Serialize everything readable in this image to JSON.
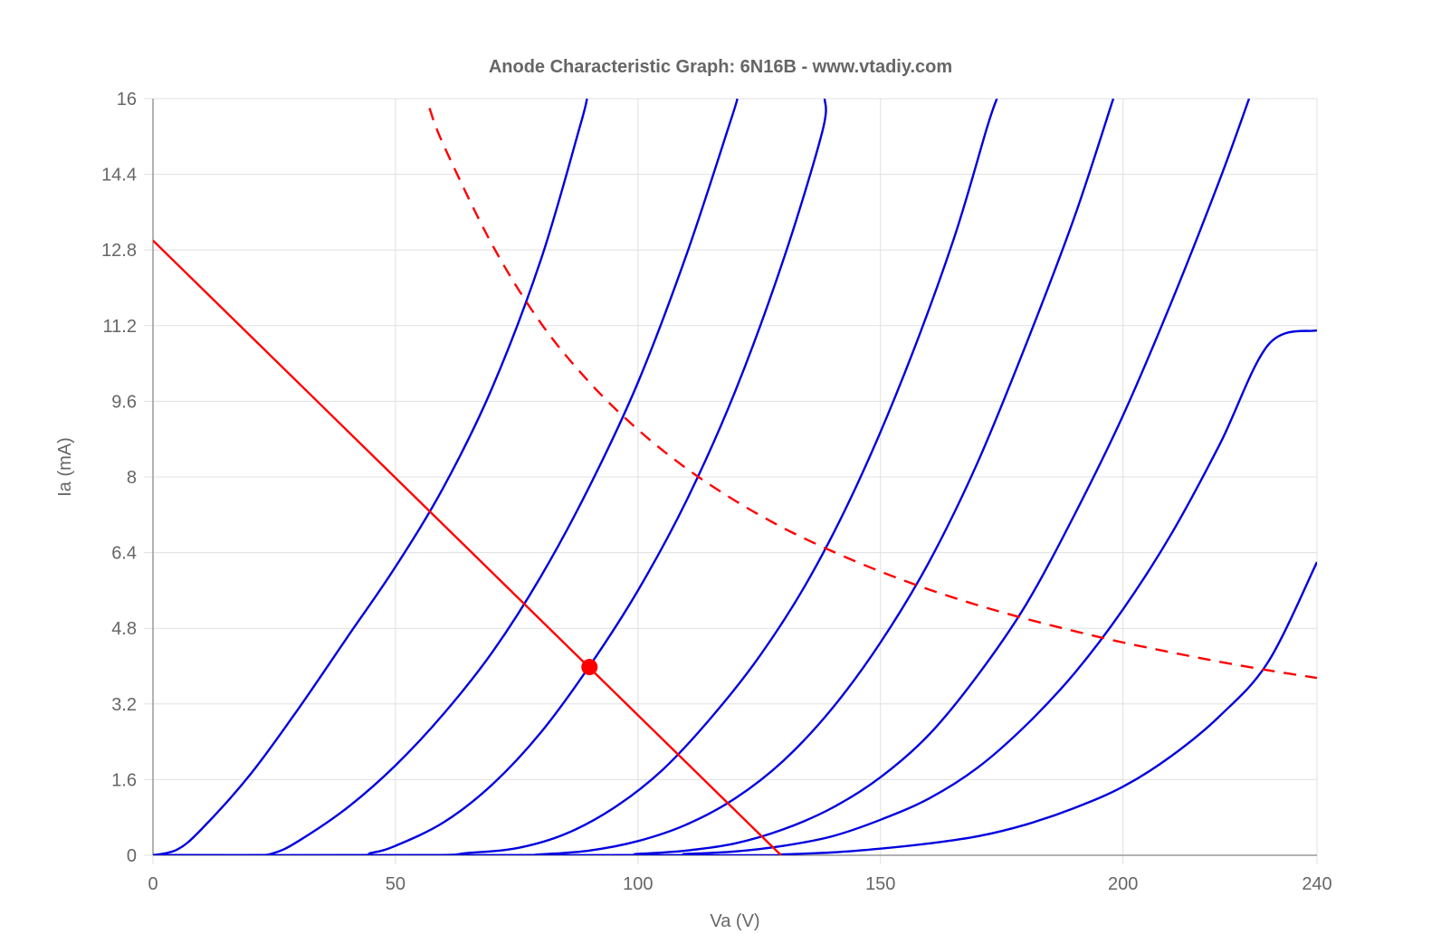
{
  "chart_data": {
    "type": "line",
    "title": "Anode Characteristic Graph: 6N16B - www.vtadiy.com",
    "xlabel": "Va (V)",
    "ylabel": "Ia (mA)",
    "xlim": [
      0,
      240
    ],
    "ylim": [
      0,
      16
    ],
    "x_ticks": [
      "0",
      "50",
      "100",
      "150",
      "200",
      "240"
    ],
    "y_ticks": [
      "0",
      "1.6",
      "3.2",
      "4.8",
      "6.4",
      "8",
      "9.6",
      "11.2",
      "12.8",
      "14.4",
      "16"
    ],
    "grid": true,
    "legend": "none",
    "colors": {
      "curves": "#0000e0",
      "load_line": "#ff0000",
      "max_dissipation": "#ff0000",
      "operating_point": "#ff0000",
      "grid": "#e0e0e0",
      "axis": "#999999",
      "text": "#666666"
    },
    "series": [
      {
        "values": [
          [
            0,
            0
          ],
          [
            5,
            0.12
          ],
          [
            10,
            0.55
          ],
          [
            20,
            1.7
          ],
          [
            30,
            3.1
          ],
          [
            40,
            4.6
          ],
          [
            50,
            6.1
          ],
          [
            60,
            7.8
          ],
          [
            70,
            9.9
          ],
          [
            80,
            12.6
          ],
          [
            88,
            15.4
          ],
          [
            89.5,
            16
          ]
        ]
      },
      {
        "values": [
          [
            0,
            0
          ],
          [
            20,
            0
          ],
          [
            25,
            0.05
          ],
          [
            30,
            0.3
          ],
          [
            40,
            1.0
          ],
          [
            50,
            1.9
          ],
          [
            60,
            3.0
          ],
          [
            70,
            4.3
          ],
          [
            80,
            5.9
          ],
          [
            90,
            7.8
          ],
          [
            100,
            10.0
          ],
          [
            110,
            12.7
          ],
          [
            119,
            15.5
          ],
          [
            120.5,
            16
          ]
        ]
      },
      {
        "values": [
          [
            0,
            0
          ],
          [
            40,
            0
          ],
          [
            45,
            0.05
          ],
          [
            50,
            0.2
          ],
          [
            60,
            0.7
          ],
          [
            70,
            1.5
          ],
          [
            80,
            2.6
          ],
          [
            90,
            4.0
          ],
          [
            100,
            5.6
          ],
          [
            110,
            7.5
          ],
          [
            120,
            9.8
          ],
          [
            130,
            12.6
          ],
          [
            138,
            15.3
          ],
          [
            138.5,
            16
          ]
        ]
      },
      {
        "values": [
          [
            0,
            0
          ],
          [
            55,
            0
          ],
          [
            65,
            0.05
          ],
          [
            75,
            0.15
          ],
          [
            85,
            0.45
          ],
          [
            95,
            1.0
          ],
          [
            105,
            1.8
          ],
          [
            115,
            2.9
          ],
          [
            125,
            4.2
          ],
          [
            135,
            5.8
          ],
          [
            145,
            7.8
          ],
          [
            155,
            10.2
          ],
          [
            165,
            13.0
          ],
          [
            172,
            15.4
          ],
          [
            174,
            16
          ]
        ]
      },
      {
        "values": [
          [
            0,
            0
          ],
          [
            70,
            0
          ],
          [
            80,
            0.02
          ],
          [
            90,
            0.1
          ],
          [
            100,
            0.3
          ],
          [
            110,
            0.65
          ],
          [
            120,
            1.2
          ],
          [
            130,
            2.0
          ],
          [
            140,
            3.1
          ],
          [
            150,
            4.5
          ],
          [
            160,
            6.2
          ],
          [
            170,
            8.3
          ],
          [
            180,
            10.8
          ],
          [
            190,
            13.5
          ],
          [
            198,
            16
          ]
        ]
      },
      {
        "values": [
          [
            0,
            0
          ],
          [
            90,
            0
          ],
          [
            100,
            0.03
          ],
          [
            110,
            0.1
          ],
          [
            120,
            0.25
          ],
          [
            130,
            0.55
          ],
          [
            140,
            1.0
          ],
          [
            150,
            1.65
          ],
          [
            160,
            2.55
          ],
          [
            170,
            3.8
          ],
          [
            180,
            5.3
          ],
          [
            190,
            7.2
          ],
          [
            200,
            9.3
          ],
          [
            210,
            11.7
          ],
          [
            220,
            14.3
          ],
          [
            226,
            16
          ]
        ]
      },
      {
        "values": [
          [
            0,
            0
          ],
          [
            100,
            0
          ],
          [
            110,
            0.03
          ],
          [
            120,
            0.08
          ],
          [
            130,
            0.2
          ],
          [
            140,
            0.4
          ],
          [
            150,
            0.75
          ],
          [
            160,
            1.2
          ],
          [
            170,
            1.85
          ],
          [
            180,
            2.75
          ],
          [
            190,
            3.85
          ],
          [
            200,
            5.2
          ],
          [
            210,
            6.8
          ],
          [
            220,
            8.7
          ],
          [
            230,
            10.8
          ],
          [
            240,
            11.1
          ]
        ]
      },
      {
        "values": [
          [
            0,
            0
          ],
          [
            120,
            0
          ],
          [
            130,
            0.02
          ],
          [
            140,
            0.06
          ],
          [
            150,
            0.14
          ],
          [
            160,
            0.25
          ],
          [
            170,
            0.4
          ],
          [
            180,
            0.65
          ],
          [
            190,
            1.0
          ],
          [
            200,
            1.45
          ],
          [
            210,
            2.1
          ],
          [
            220,
            2.95
          ],
          [
            230,
            4.1
          ],
          [
            240,
            6.2
          ]
        ]
      }
    ],
    "load_line": [
      [
        0,
        13
      ],
      [
        129.5,
        0
      ]
    ],
    "max_dissipation_curve": [
      [
        57,
        15.8
      ],
      [
        60,
        15.0
      ],
      [
        70,
        12.9
      ],
      [
        80,
        11.25
      ],
      [
        90,
        10.0
      ],
      [
        100,
        9.0
      ],
      [
        110,
        8.18
      ],
      [
        120,
        7.5
      ],
      [
        130,
        6.92
      ],
      [
        140,
        6.43
      ],
      [
        150,
        6.0
      ],
      [
        160,
        5.62
      ],
      [
        170,
        5.29
      ],
      [
        180,
        5.0
      ],
      [
        190,
        4.74
      ],
      [
        200,
        4.5
      ],
      [
        210,
        4.29
      ],
      [
        220,
        4.09
      ],
      [
        230,
        3.91
      ],
      [
        240,
        3.75
      ]
    ],
    "operating_point": [
      90,
      3.98
    ]
  }
}
